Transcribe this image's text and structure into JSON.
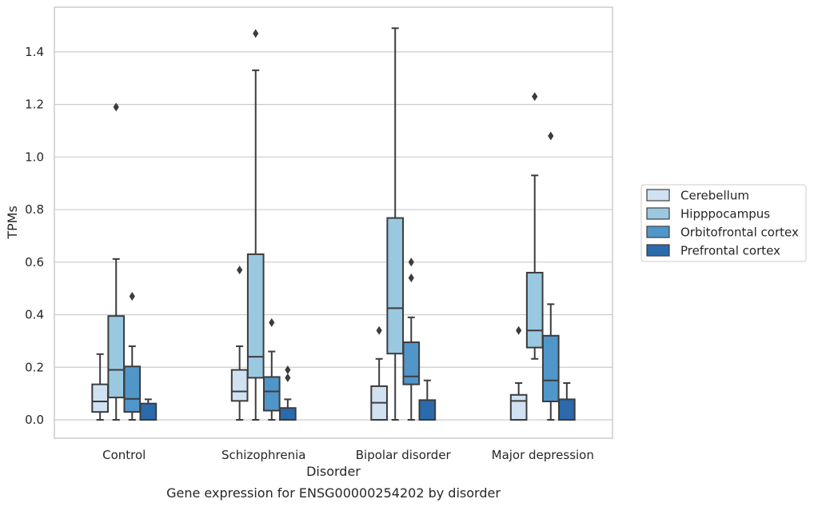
{
  "caption": "Gene expression for ENSG00000254202 by disorder",
  "chart_data": {
    "type": "box",
    "xlabel": "Disorder",
    "ylabel": "TPMs",
    "ylim": [
      -0.07,
      1.57
    ],
    "yticks": [
      "0.0",
      "0.2",
      "0.4",
      "0.6",
      "0.8",
      "1.0",
      "1.2",
      "1.4"
    ],
    "ytick_values": [
      0.0,
      0.2,
      0.4,
      0.6,
      0.8,
      1.0,
      1.2,
      1.4
    ],
    "grid": "horizontal",
    "legend_position": "right",
    "categories": [
      "Control",
      "Schizophrenia",
      "Bipolar disorder",
      "Major depression"
    ],
    "series": [
      {
        "name": "Cerebellum",
        "color": "#d0e1f2",
        "boxes": [
          {
            "whislo": 0.0,
            "q1": 0.03,
            "med": 0.07,
            "q3": 0.135,
            "whishi": 0.25,
            "fliers": []
          },
          {
            "whislo": 0.0,
            "q1": 0.072,
            "med": 0.108,
            "q3": 0.19,
            "whishi": 0.28,
            "fliers": [
              0.57
            ]
          },
          {
            "whislo": 0.0,
            "q1": 0.0,
            "med": 0.065,
            "q3": 0.128,
            "whishi": 0.232,
            "fliers": [
              0.34
            ]
          },
          {
            "whislo": 0.0,
            "q1": 0.0,
            "med": 0.072,
            "q3": 0.095,
            "whishi": 0.14,
            "fliers": [
              0.34
            ]
          }
        ]
      },
      {
        "name": "Hipppocampus",
        "color": "#9ac8e0",
        "boxes": [
          {
            "whislo": 0.0,
            "q1": 0.085,
            "med": 0.19,
            "q3": 0.395,
            "whishi": 0.612,
            "fliers": [
              1.19
            ]
          },
          {
            "whislo": 0.0,
            "q1": 0.16,
            "med": 0.24,
            "q3": 0.63,
            "whishi": 1.33,
            "fliers": [
              1.47
            ]
          },
          {
            "whislo": 0.0,
            "q1": 0.252,
            "med": 0.425,
            "q3": 0.768,
            "whishi": 1.49,
            "fliers": []
          },
          {
            "whislo": 0.232,
            "q1": 0.275,
            "med": 0.34,
            "q3": 0.56,
            "whishi": 0.93,
            "fliers": [
              1.23
            ]
          }
        ]
      },
      {
        "name": "Orbitofrontal cortex",
        "color": "#5096c8",
        "boxes": [
          {
            "whislo": 0.0,
            "q1": 0.03,
            "med": 0.08,
            "q3": 0.203,
            "whishi": 0.28,
            "fliers": [
              0.47
            ]
          },
          {
            "whislo": 0.0,
            "q1": 0.035,
            "med": 0.108,
            "q3": 0.163,
            "whishi": 0.26,
            "fliers": [
              0.37
            ]
          },
          {
            "whislo": 0.0,
            "q1": 0.135,
            "med": 0.165,
            "q3": 0.295,
            "whishi": 0.39,
            "fliers": [
              0.54,
              0.6
            ]
          },
          {
            "whislo": 0.0,
            "q1": 0.07,
            "med": 0.15,
            "q3": 0.32,
            "whishi": 0.44,
            "fliers": [
              1.08
            ]
          }
        ]
      },
      {
        "name": "Prefrontal cortex",
        "color": "#2b6aab",
        "boxes": [
          {
            "whislo": 0.0,
            "q1": 0.0,
            "med": 0.0,
            "q3": 0.062,
            "whishi": 0.078,
            "fliers": []
          },
          {
            "whislo": 0.0,
            "q1": 0.0,
            "med": 0.0,
            "q3": 0.045,
            "whishi": 0.078,
            "fliers": [
              0.16,
              0.19
            ]
          },
          {
            "whislo": 0.0,
            "q1": 0.0,
            "med": 0.0,
            "q3": 0.075,
            "whishi": 0.15,
            "fliers": []
          },
          {
            "whislo": 0.0,
            "q1": 0.0,
            "med": 0.0,
            "q3": 0.078,
            "whishi": 0.14,
            "fliers": []
          }
        ]
      }
    ]
  }
}
